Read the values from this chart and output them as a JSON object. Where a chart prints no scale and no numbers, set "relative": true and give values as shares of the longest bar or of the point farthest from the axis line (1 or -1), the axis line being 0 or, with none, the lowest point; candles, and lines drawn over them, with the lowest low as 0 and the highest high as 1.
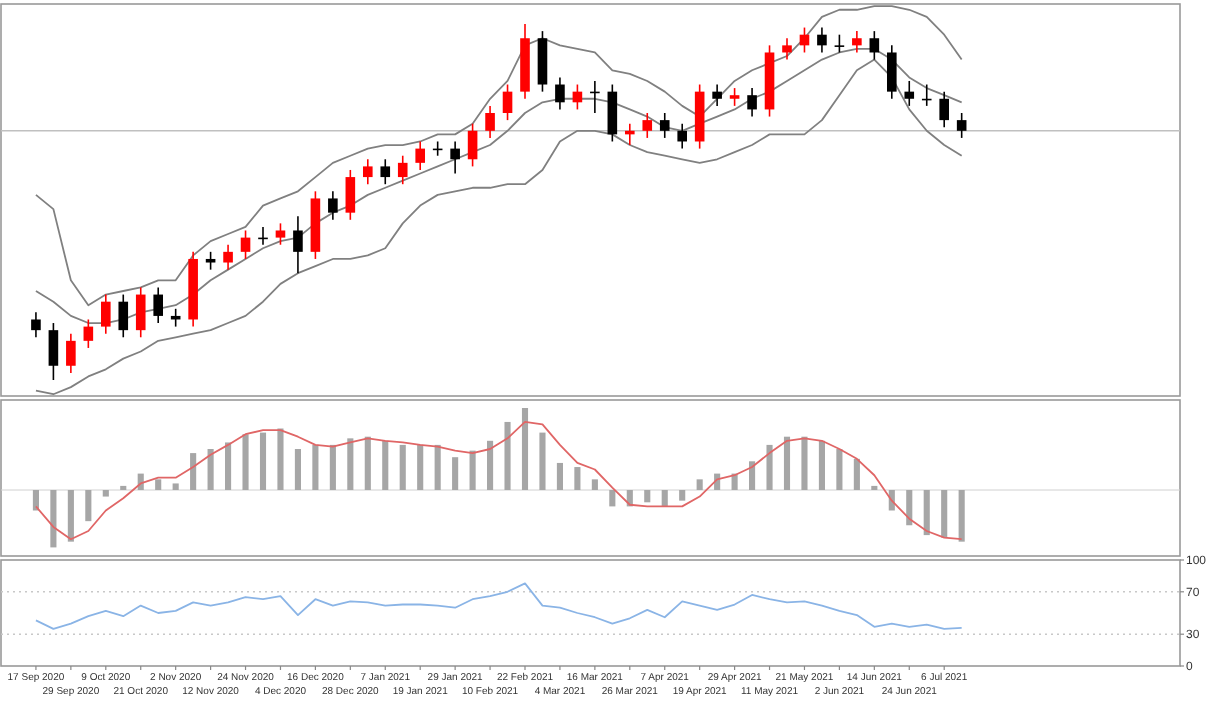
{
  "chart_data": [
    {
      "type": "candlestick",
      "relative": true,
      "ohlc": [
        [
          0.17,
          0.19,
          0.12,
          0.14
        ],
        [
          0.14,
          0.16,
          0.0,
          0.04
        ],
        [
          0.04,
          0.13,
          0.02,
          0.11
        ],
        [
          0.11,
          0.17,
          0.09,
          0.15
        ],
        [
          0.15,
          0.24,
          0.13,
          0.22
        ],
        [
          0.22,
          0.24,
          0.12,
          0.14
        ],
        [
          0.14,
          0.26,
          0.12,
          0.24
        ],
        [
          0.24,
          0.26,
          0.16,
          0.18
        ],
        [
          0.18,
          0.2,
          0.15,
          0.17
        ],
        [
          0.17,
          0.36,
          0.15,
          0.34
        ],
        [
          0.34,
          0.36,
          0.31,
          0.33
        ],
        [
          0.33,
          0.38,
          0.31,
          0.36
        ],
        [
          0.36,
          0.42,
          0.34,
          0.4
        ],
        [
          0.4,
          0.43,
          0.38,
          0.4
        ],
        [
          0.4,
          0.44,
          0.38,
          0.42
        ],
        [
          0.42,
          0.46,
          0.3,
          0.36
        ],
        [
          0.36,
          0.53,
          0.34,
          0.51
        ],
        [
          0.51,
          0.53,
          0.45,
          0.47
        ],
        [
          0.47,
          0.59,
          0.45,
          0.57
        ],
        [
          0.57,
          0.62,
          0.55,
          0.6
        ],
        [
          0.6,
          0.62,
          0.55,
          0.57
        ],
        [
          0.57,
          0.63,
          0.55,
          0.61
        ],
        [
          0.61,
          0.67,
          0.59,
          0.65
        ],
        [
          0.65,
          0.67,
          0.63,
          0.65
        ],
        [
          0.65,
          0.67,
          0.58,
          0.62
        ],
        [
          0.62,
          0.72,
          0.6,
          0.7
        ],
        [
          0.7,
          0.77,
          0.68,
          0.75
        ],
        [
          0.75,
          0.83,
          0.73,
          0.81
        ],
        [
          0.81,
          1.0,
          0.79,
          0.96
        ],
        [
          0.96,
          0.98,
          0.81,
          0.83
        ],
        [
          0.83,
          0.85,
          0.76,
          0.78
        ],
        [
          0.78,
          0.83,
          0.76,
          0.81
        ],
        [
          0.81,
          0.84,
          0.75,
          0.81
        ],
        [
          0.81,
          0.83,
          0.67,
          0.69
        ],
        [
          0.69,
          0.72,
          0.66,
          0.7
        ],
        [
          0.7,
          0.75,
          0.68,
          0.73
        ],
        [
          0.73,
          0.75,
          0.68,
          0.7
        ],
        [
          0.7,
          0.72,
          0.65,
          0.67
        ],
        [
          0.67,
          0.83,
          0.65,
          0.81
        ],
        [
          0.81,
          0.83,
          0.77,
          0.79
        ],
        [
          0.79,
          0.82,
          0.77,
          0.8
        ],
        [
          0.8,
          0.82,
          0.74,
          0.76
        ],
        [
          0.76,
          0.94,
          0.74,
          0.92
        ],
        [
          0.92,
          0.96,
          0.9,
          0.94
        ],
        [
          0.94,
          0.99,
          0.92,
          0.97
        ],
        [
          0.97,
          0.99,
          0.92,
          0.94
        ],
        [
          0.94,
          0.97,
          0.92,
          0.94
        ],
        [
          0.94,
          0.98,
          0.92,
          0.96
        ],
        [
          0.96,
          0.98,
          0.9,
          0.92
        ],
        [
          0.92,
          0.94,
          0.79,
          0.81
        ],
        [
          0.81,
          0.84,
          0.77,
          0.79
        ],
        [
          0.79,
          0.83,
          0.77,
          0.79
        ],
        [
          0.79,
          0.81,
          0.71,
          0.73
        ],
        [
          0.73,
          0.75,
          0.68,
          0.7
        ]
      ],
      "colors": [
        "#000000",
        "#000000",
        "#ff0000",
        "#ff0000",
        "#ff0000",
        "#000000",
        "#ff0000",
        "#000000",
        "#000000",
        "#ff0000",
        "#000000",
        "#ff0000",
        "#ff0000",
        "#000000",
        "#ff0000",
        "#000000",
        "#ff0000",
        "#000000",
        "#ff0000",
        "#ff0000",
        "#000000",
        "#ff0000",
        "#ff0000",
        "#000000",
        "#000000",
        "#ff0000",
        "#ff0000",
        "#ff0000",
        "#ff0000",
        "#000000",
        "#000000",
        "#ff0000",
        "#000000",
        "#000000",
        "#ff0000",
        "#ff0000",
        "#000000",
        "#000000",
        "#ff0000",
        "#000000",
        "#ff0000",
        "#000000",
        "#ff0000",
        "#ff0000",
        "#ff0000",
        "#000000",
        "#000000",
        "#ff0000",
        "#000000",
        "#000000",
        "#000000",
        "#000000",
        "#000000",
        "#000000"
      ],
      "series": [
        {
          "type": "line",
          "color": "#808080",
          "values": [
            0.52,
            0.48,
            0.28,
            0.21,
            0.24,
            0.25,
            0.26,
            0.28,
            0.28,
            0.35,
            0.39,
            0.41,
            0.43,
            0.49,
            0.51,
            0.53,
            0.57,
            0.61,
            0.63,
            0.65,
            0.66,
            0.66,
            0.67,
            0.69,
            0.69,
            0.72,
            0.79,
            0.84,
            0.94,
            0.96,
            0.94,
            0.93,
            0.92,
            0.87,
            0.86,
            0.84,
            0.81,
            0.77,
            0.74,
            0.79,
            0.84,
            0.87,
            0.89,
            0.91,
            0.96,
            1.02,
            1.04,
            1.04,
            1.05,
            1.05,
            1.04,
            1.02,
            0.97,
            0.9
          ]
        },
        {
          "type": "line",
          "color": "#808080",
          "values": [
            0.25,
            0.22,
            0.18,
            0.16,
            0.16,
            0.17,
            0.19,
            0.2,
            0.21,
            0.24,
            0.28,
            0.31,
            0.34,
            0.37,
            0.39,
            0.4,
            0.44,
            0.47,
            0.49,
            0.52,
            0.54,
            0.56,
            0.58,
            0.6,
            0.62,
            0.64,
            0.66,
            0.7,
            0.75,
            0.78,
            0.79,
            0.79,
            0.79,
            0.78,
            0.76,
            0.74,
            0.71,
            0.7,
            0.72,
            0.74,
            0.76,
            0.79,
            0.81,
            0.84,
            0.87,
            0.9,
            0.92,
            0.93,
            0.93,
            0.9,
            0.85,
            0.82,
            0.8,
            0.78
          ]
        },
        {
          "type": "line",
          "color": "#808080",
          "values": [
            -0.03,
            -0.04,
            -0.02,
            0.01,
            0.03,
            0.06,
            0.08,
            0.11,
            0.12,
            0.13,
            0.14,
            0.16,
            0.18,
            0.22,
            0.27,
            0.3,
            0.32,
            0.34,
            0.34,
            0.35,
            0.37,
            0.44,
            0.49,
            0.52,
            0.53,
            0.54,
            0.54,
            0.55,
            0.55,
            0.59,
            0.67,
            0.7,
            0.7,
            0.69,
            0.66,
            0.64,
            0.63,
            0.62,
            0.61,
            0.62,
            0.64,
            0.66,
            0.69,
            0.69,
            0.69,
            0.73,
            0.8,
            0.87,
            0.9,
            0.85,
            0.76,
            0.7,
            0.66,
            0.63
          ]
        }
      ],
      "ref_lines": [
        {
          "axis": "y",
          "value": 0.7,
          "color": "#c0c0c0"
        }
      ]
    },
    {
      "type": "bar",
      "relative": true,
      "series": [
        {
          "type": "bar",
          "color": "#a6a6a6",
          "values": [
            -0.25,
            -0.7,
            -0.63,
            -0.38,
            -0.08,
            0.05,
            0.2,
            0.13,
            0.08,
            0.45,
            0.5,
            0.58,
            0.68,
            0.7,
            0.75,
            0.5,
            0.55,
            0.55,
            0.63,
            0.65,
            0.6,
            0.55,
            0.55,
            0.55,
            0.4,
            0.48,
            0.6,
            0.83,
            1.0,
            0.7,
            0.33,
            0.28,
            0.13,
            -0.2,
            -0.2,
            -0.15,
            -0.2,
            -0.13,
            0.13,
            0.2,
            0.2,
            0.35,
            0.55,
            0.65,
            0.65,
            0.6,
            0.5,
            0.38,
            0.05,
            -0.25,
            -0.43,
            -0.55,
            -0.58,
            -0.63
          ]
        },
        {
          "type": "line",
          "color": "#e06666",
          "values": [
            -0.2,
            -0.45,
            -0.6,
            -0.5,
            -0.25,
            -0.1,
            0.08,
            0.15,
            0.15,
            0.28,
            0.43,
            0.55,
            0.68,
            0.73,
            0.73,
            0.65,
            0.55,
            0.53,
            0.58,
            0.63,
            0.6,
            0.58,
            0.55,
            0.53,
            0.48,
            0.45,
            0.5,
            0.63,
            0.83,
            0.8,
            0.55,
            0.33,
            0.25,
            0.03,
            -0.18,
            -0.2,
            -0.2,
            -0.2,
            -0.08,
            0.13,
            0.18,
            0.28,
            0.45,
            0.6,
            0.63,
            0.6,
            0.5,
            0.38,
            0.18,
            -0.13,
            -0.35,
            -0.5,
            -0.58,
            -0.6
          ]
        }
      ]
    },
    {
      "type": "line",
      "categories": [
        "17 Sep 2020",
        null,
        "29 Sep 2020",
        null,
        "9 Oct 2020",
        null,
        "21 Oct 2020",
        null,
        "2 Nov 2020",
        null,
        "12 Nov 2020",
        null,
        "24 Nov 2020",
        null,
        "4 Dec 2020",
        null,
        "16 Dec 2020",
        null,
        "28 Dec 2020",
        null,
        "7 Jan 2021",
        null,
        "19 Jan 2021",
        null,
        "29 Jan 2021",
        null,
        "10 Feb 2021",
        null,
        "22 Feb 2021",
        null,
        "4 Mar 2021",
        null,
        "16 Mar 2021",
        null,
        "26 Mar 2021",
        null,
        "7 Apr 2021",
        null,
        "19 Apr 2021",
        null,
        "29 Apr 2021",
        null,
        "11 May 2021",
        null,
        "21 May 2021",
        null,
        "2 Jun 2021",
        null,
        "14 Jun 2021",
        null,
        "24 Jun 2021",
        null,
        "6 Jul 2021",
        null
      ],
      "series": [
        {
          "color": "#8ab4e6",
          "values": [
            43,
            35,
            40,
            47,
            52,
            47,
            57,
            50,
            52,
            60,
            57,
            60,
            65,
            63,
            66,
            48,
            63,
            57,
            61,
            60,
            57,
            58,
            58,
            57,
            55,
            63,
            66,
            70,
            78,
            57,
            55,
            50,
            46,
            40,
            45,
            53,
            46,
            61,
            57,
            53,
            58,
            67,
            63,
            60,
            61,
            57,
            52,
            48,
            37,
            40,
            37,
            39,
            35,
            36
          ]
        }
      ],
      "ylim": [
        0,
        100
      ],
      "yticks": [
        0,
        30,
        70,
        100
      ],
      "ref_lines": [
        {
          "axis": "y",
          "value": 70,
          "color": "#c8c8c8",
          "line_style": "dotted"
        },
        {
          "axis": "y",
          "value": 30,
          "color": "#c8c8c8",
          "line_style": "dotted"
        }
      ]
    }
  ]
}
